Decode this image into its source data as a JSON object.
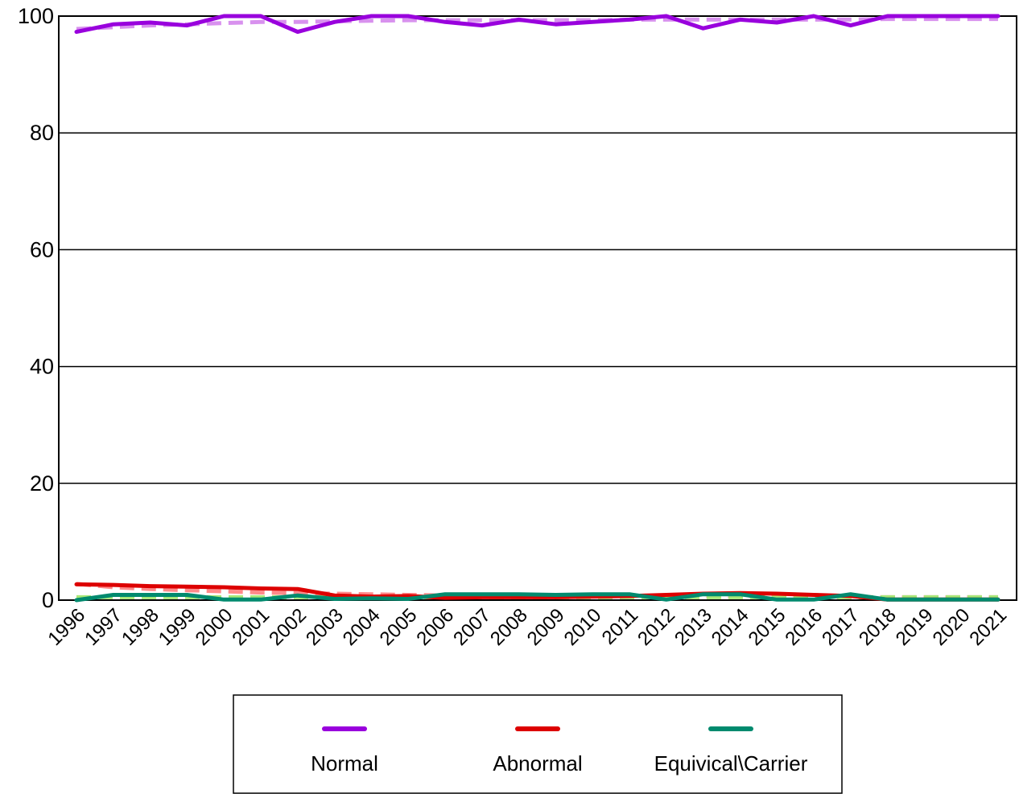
{
  "chart_data": {
    "type": "line",
    "title": "",
    "xlabel": "",
    "ylabel": "",
    "ylim": [
      0,
      100
    ],
    "yticks": [
      "0",
      "20",
      "40",
      "60",
      "80",
      "100"
    ],
    "grid": "horizontal",
    "legend_position": "bottom",
    "categories": [
      "1996",
      "1997",
      "1998",
      "1999",
      "2000",
      "2001",
      "2002",
      "2003",
      "2004",
      "2005",
      "2006",
      "2007",
      "2008",
      "2009",
      "2010",
      "2011",
      "2012",
      "2013",
      "2014",
      "2015",
      "2016",
      "2017",
      "2018",
      "2019",
      "2020",
      "2021"
    ],
    "series": [
      {
        "name": "Normal",
        "color": "#9900dd",
        "values": [
          97.3,
          98.6,
          98.9,
          98.4,
          100,
          100,
          97.3,
          99.0,
          100,
          100,
          99.0,
          98.4,
          99.4,
          98.6,
          99.0,
          99.4,
          100,
          97.9,
          99.4,
          98.9,
          100,
          98.4,
          100,
          100,
          100,
          100
        ],
        "trend_color": "#d891ee",
        "trend": [
          97.8,
          98.1,
          98.4,
          98.6,
          98.8,
          99.0,
          99.0,
          99.1,
          99.2,
          99.3,
          99.3,
          99.3,
          99.3,
          99.3,
          99.3,
          99.4,
          99.4,
          99.4,
          99.4,
          99.4,
          99.4,
          99.4,
          99.5,
          99.5,
          99.5,
          99.5
        ]
      },
      {
        "name": "Abnormal",
        "color": "#dd0000",
        "values": [
          2.7,
          2.6,
          2.4,
          2.3,
          2.2,
          2.0,
          1.9,
          0.8,
          0.6,
          0.7,
          0.4,
          0.5,
          0.5,
          0.5,
          0.6,
          0.7,
          0.9,
          1.1,
          1.2,
          1.1,
          0.9,
          0.7,
          0.1,
          0.1,
          0.1,
          0.1
        ],
        "trend_color": "#ff8a8a",
        "trend": [
          2.8,
          2.2,
          1.9,
          1.7,
          1.5,
          1.3,
          1.2,
          1.1,
          1.0,
          0.9,
          0.8,
          0.8,
          0.7,
          0.7,
          0.7,
          0.7,
          0.6,
          0.6,
          0.6,
          0.6,
          0.6,
          0.5,
          0.5,
          0.5,
          0.5,
          0.5
        ]
      },
      {
        "name": "Equivical\\Carrier",
        "color": "#008a6e",
        "values": [
          0.0,
          0.9,
          0.9,
          0.9,
          0.1,
          0.1,
          0.8,
          0.2,
          0.3,
          0.2,
          1.0,
          1.0,
          1.0,
          0.9,
          1.0,
          1.0,
          0.1,
          1.0,
          1.0,
          0.1,
          0.1,
          1.0,
          0.1,
          0.1,
          0.1,
          0.1
        ],
        "trend_color": "#a8e878",
        "trend": [
          0.5,
          0.5,
          0.5,
          0.5,
          0.5,
          0.5,
          0.5,
          0.5,
          0.5,
          0.5,
          0.5,
          0.5,
          0.5,
          0.5,
          0.5,
          0.5,
          0.5,
          0.5,
          0.5,
          0.5,
          0.5,
          0.5,
          0.5,
          0.5,
          0.5,
          0.5
        ]
      }
    ]
  }
}
